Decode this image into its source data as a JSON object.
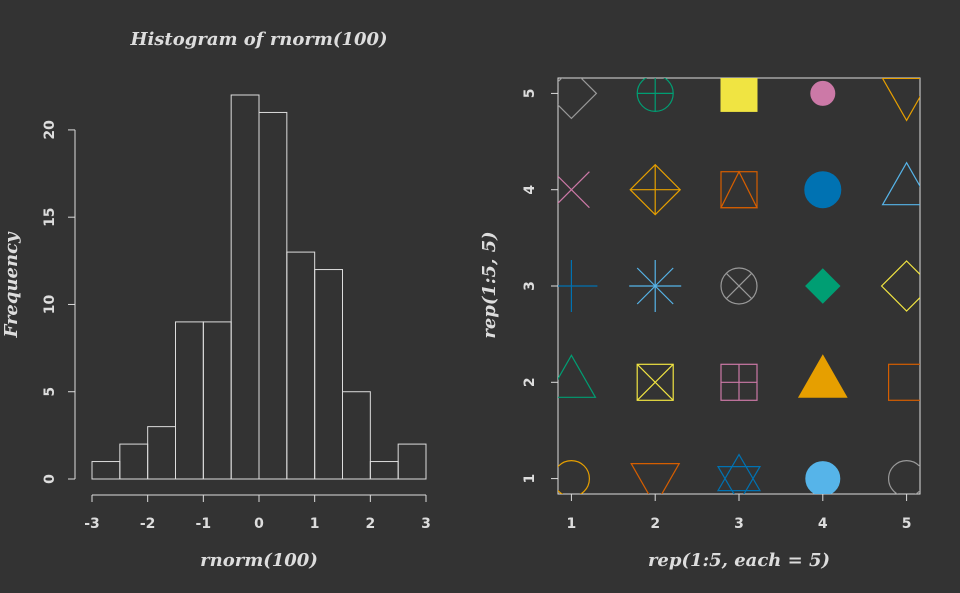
{
  "chart_data": [
    {
      "type": "histogram",
      "title": "Histogram of rnorm(100)",
      "xlabel": "rnorm(100)",
      "ylabel": "Frequency",
      "bins": [
        -3,
        -2.5,
        -2,
        -1.5,
        -1,
        -0.5,
        0,
        0.5,
        1,
        1.5,
        2,
        2.5,
        3
      ],
      "values": [
        1,
        2,
        3,
        9,
        9,
        22,
        21,
        13,
        12,
        5,
        1,
        2
      ],
      "xlim": [
        -3,
        3
      ],
      "ylim": [
        0,
        22
      ],
      "xticks": [
        -3,
        -2,
        -1,
        0,
        1,
        2,
        3
      ],
      "yticks": [
        0,
        5,
        10,
        15,
        20
      ],
      "color": "#dddddd"
    },
    {
      "type": "scatter",
      "xlabel": "rep(1:5, each = 5)",
      "ylabel": "rep(1:5, 5)",
      "x": [
        1,
        1,
        1,
        1,
        1,
        2,
        2,
        2,
        2,
        2,
        3,
        3,
        3,
        3,
        3,
        4,
        4,
        4,
        4,
        4,
        5,
        5,
        5,
        5,
        5
      ],
      "y": [
        1,
        2,
        3,
        4,
        5,
        1,
        2,
        3,
        4,
        5,
        1,
        2,
        3,
        4,
        5,
        1,
        2,
        3,
        4,
        5,
        1,
        2,
        3,
        4,
        5
      ],
      "pch": [
        1,
        2,
        3,
        4,
        5,
        6,
        7,
        8,
        9,
        10,
        11,
        12,
        13,
        14,
        15,
        16,
        17,
        18,
        19,
        20,
        21,
        22,
        23,
        24,
        25
      ],
      "colors": [
        "#E69F00",
        "#009E73",
        "#0072B2",
        "#CC79A7",
        "#999999",
        "#D55E00",
        "#F0E442",
        "#56B4E9",
        "#E69F00",
        "#009E73",
        "#0072B2",
        "#CC79A7",
        "#999999",
        "#D55E00",
        "#F0E442",
        "#56B4E9",
        "#E69F00",
        "#009E73",
        "#0072B2",
        "#CC79A7",
        "#999999",
        "#D55E00",
        "#F0E442",
        "#56B4E9",
        "#E69F00"
      ],
      "xlim": [
        0.84,
        5.16
      ],
      "ylim": [
        0.84,
        5.16
      ],
      "xticks": [
        1,
        2,
        3,
        4,
        5
      ],
      "yticks": [
        1,
        2,
        3,
        4,
        5
      ]
    }
  ]
}
